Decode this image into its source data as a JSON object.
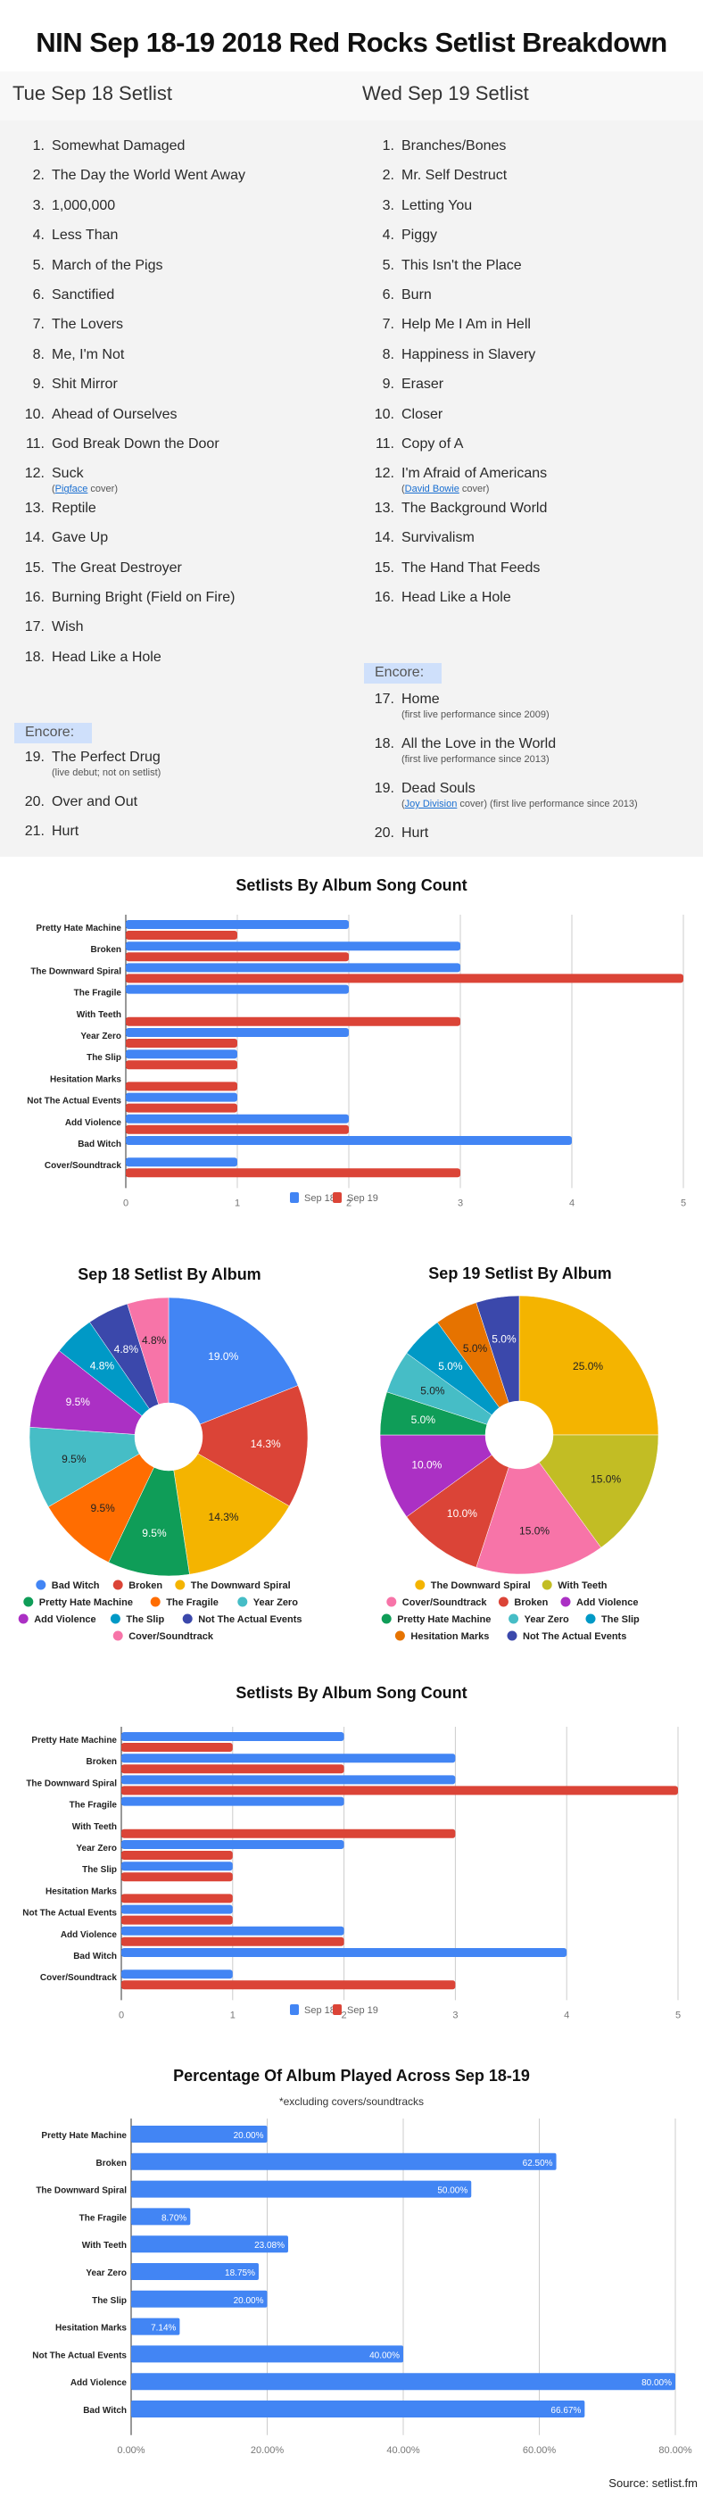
{
  "page": {
    "title": "NIN Sep 18-19 2018 Red Rocks Setlist Breakdown",
    "source": "Source: setlist.fm"
  },
  "setlists": {
    "sep18": {
      "heading": "Tue Sep 18 Setlist",
      "encore_label": "Encore:",
      "main": [
        {
          "n": "1.",
          "title": "Somewhat Damaged"
        },
        {
          "n": "2.",
          "title": "The Day the World Went Away"
        },
        {
          "n": "3.",
          "title": "1,000,000"
        },
        {
          "n": "4.",
          "title": "Less Than"
        },
        {
          "n": "5.",
          "title": "March of the Pigs"
        },
        {
          "n": "6.",
          "title": "Sanctified"
        },
        {
          "n": "7.",
          "title": "The Lovers"
        },
        {
          "n": "8.",
          "title": "Me, I'm Not"
        },
        {
          "n": "9.",
          "title": "Shit Mirror"
        },
        {
          "n": "10.",
          "title": "Ahead of Ourselves"
        },
        {
          "n": "11.",
          "title": "God Break Down the Door"
        },
        {
          "n": "12.",
          "title": "Suck",
          "note_pre": "(",
          "note_link": "Pigface",
          "note_post": " cover)"
        },
        {
          "n": "13.",
          "title": "Reptile"
        },
        {
          "n": "14.",
          "title": "Gave Up"
        },
        {
          "n": "15.",
          "title": "The Great Destroyer"
        },
        {
          "n": "16.",
          "title": "Burning Bright (Field on Fire)"
        },
        {
          "n": "17.",
          "title": "Wish"
        },
        {
          "n": "18.",
          "title": "Head Like a Hole"
        }
      ],
      "encore": [
        {
          "n": "19.",
          "title": "The Perfect Drug",
          "note": "(live debut; not on setlist)"
        },
        {
          "n": "20.",
          "title": "Over and Out"
        },
        {
          "n": "21.",
          "title": "Hurt"
        }
      ]
    },
    "sep19": {
      "heading": "Wed Sep 19 Setlist",
      "encore_label": "Encore:",
      "main": [
        {
          "n": "1.",
          "title": "Branches/Bones"
        },
        {
          "n": "2.",
          "title": "Mr. Self Destruct"
        },
        {
          "n": "3.",
          "title": "Letting You"
        },
        {
          "n": "4.",
          "title": "Piggy"
        },
        {
          "n": "5.",
          "title": "This Isn't the Place"
        },
        {
          "n": "6.",
          "title": "Burn"
        },
        {
          "n": "7.",
          "title": "Help Me I Am in Hell"
        },
        {
          "n": "8.",
          "title": "Happiness in Slavery"
        },
        {
          "n": "9.",
          "title": "Eraser"
        },
        {
          "n": "10.",
          "title": "Closer"
        },
        {
          "n": "11.",
          "title": "Copy of A"
        },
        {
          "n": "12.",
          "title": "I'm Afraid of Americans",
          "note_pre": "(",
          "note_link": "David Bowie",
          "note_post": " cover)"
        },
        {
          "n": "13.",
          "title": "The Background World"
        },
        {
          "n": "14.",
          "title": "Survivalism"
        },
        {
          "n": "15.",
          "title": "The Hand That Feeds"
        },
        {
          "n": "16.",
          "title": "Head Like a Hole"
        }
      ],
      "encore": [
        {
          "n": "17.",
          "title": "Home",
          "note": "(first live performance since 2009)"
        },
        {
          "n": "18.",
          "title": "All the Love in the World",
          "note": "(first live performance since 2013)"
        },
        {
          "n": "19.",
          "title": "Dead Souls",
          "note_pre": "(",
          "note_link": "Joy Division",
          "note_post": " cover) (first live performance since 2013)"
        },
        {
          "n": "20.",
          "title": "Hurt"
        }
      ]
    }
  },
  "colors": {
    "blue": "#4285f4",
    "red": "#db4437",
    "yellow": "#f4b400",
    "green": "#0f9d58",
    "orange": "#ff6d01",
    "teal": "#46bdc6",
    "purple": "#ab30c4",
    "cyan": "#0099c6",
    "indigo": "#3b48ab",
    "pink": "#f774a8",
    "olive": "#c2bd24",
    "dark_orange": "#e67300"
  },
  "chart_data": [
    {
      "type": "bar",
      "orientation": "horizontal",
      "title": "Setlists By Album Song Count",
      "categories": [
        "Pretty Hate Machine",
        "Broken",
        "The Downward Spiral",
        "The Fragile",
        "With Teeth",
        "Year Zero",
        "The Slip",
        "Hesitation Marks",
        "Not The Actual Events",
        "Add Violence",
        "Bad Witch",
        "Cover/Soundtrack"
      ],
      "series": [
        {
          "name": "Sep 18",
          "color": "#4285f4",
          "values": [
            2,
            3,
            3,
            2,
            0,
            2,
            1,
            0,
            1,
            2,
            4,
            1
          ]
        },
        {
          "name": "Sep 19",
          "color": "#db4437",
          "values": [
            1,
            2,
            5,
            0,
            3,
            1,
            1,
            1,
            1,
            2,
            0,
            3
          ]
        }
      ],
      "xticks": [
        "0",
        "1",
        "2",
        "3",
        "4",
        "5"
      ],
      "xlim": [
        0,
        5
      ],
      "grid": true,
      "legend_position": "bottom"
    },
    {
      "type": "pie",
      "donut": true,
      "title": "Sep 18 Setlist By Album",
      "labels": [
        "Bad Witch",
        "Broken",
        "The Downward Spiral",
        "Pretty Hate Machine",
        "The Fragile",
        "Year Zero",
        "Add Violence",
        "The Slip",
        "Not The Actual Events",
        "Cover/Soundtrack"
      ],
      "values": [
        19.0,
        14.3,
        14.3,
        9.5,
        9.5,
        9.5,
        9.5,
        4.8,
        4.8,
        4.8
      ],
      "value_labels": [
        "19.0%",
        "14.3%",
        "14.3%",
        "9.5%",
        "9.5%",
        "9.5%",
        "9.5%",
        "4.8%",
        "4.8%",
        "4.8%"
      ],
      "colors": [
        "#4285f4",
        "#db4437",
        "#f4b400",
        "#0f9d58",
        "#ff6d01",
        "#46bdc6",
        "#ab30c4",
        "#0099c6",
        "#3b48ab",
        "#f774a8"
      ],
      "label_colors": [
        "#ffffff",
        "#ffffff",
        "#222222",
        "#ffffff",
        "#222222",
        "#222222",
        "#ffffff",
        "#ffffff",
        "#ffffff",
        "#222222"
      ],
      "legend_position": "bottom"
    },
    {
      "type": "pie",
      "donut": true,
      "title": "Sep 19 Setlist By Album",
      "labels": [
        "The Downward Spiral",
        "With Teeth",
        "Cover/Soundtrack",
        "Broken",
        "Add Violence",
        "Pretty Hate Machine",
        "Year Zero",
        "The Slip",
        "Hesitation Marks",
        "Not The Actual Events"
      ],
      "values": [
        25.0,
        15.0,
        15.0,
        10.0,
        10.0,
        5.0,
        5.0,
        5.0,
        5.0,
        5.0
      ],
      "value_labels": [
        "25.0%",
        "15.0%",
        "15.0%",
        "10.0%",
        "10.0%",
        "5.0%",
        "5.0%",
        "5.0%",
        "5.0%",
        "5.0%"
      ],
      "colors": [
        "#f4b400",
        "#c2bd24",
        "#f774a8",
        "#db4437",
        "#ab30c4",
        "#0f9d58",
        "#46bdc6",
        "#0099c6",
        "#e67300",
        "#3b48ab"
      ],
      "label_colors": [
        "#222222",
        "#222222",
        "#222222",
        "#ffffff",
        "#ffffff",
        "#ffffff",
        "#222222",
        "#ffffff",
        "#222222",
        "#ffffff"
      ],
      "legend_position": "bottom"
    },
    {
      "type": "bar",
      "orientation": "horizontal",
      "title": "Setlists By Album Song Count",
      "categories": [
        "Pretty Hate Machine",
        "Broken",
        "The Downward Spiral",
        "The Fragile",
        "With Teeth",
        "Year Zero",
        "The Slip",
        "Hesitation Marks",
        "Not The Actual Events",
        "Add Violence",
        "Bad Witch",
        "Cover/Soundtrack"
      ],
      "series": [
        {
          "name": "Sep 18",
          "color": "#4285f4",
          "values": [
            2,
            3,
            3,
            2,
            0,
            2,
            1,
            0,
            1,
            2,
            4,
            1
          ]
        },
        {
          "name": "Sep 19",
          "color": "#db4437",
          "values": [
            1,
            2,
            5,
            0,
            3,
            1,
            1,
            1,
            1,
            2,
            0,
            3
          ]
        }
      ],
      "xticks": [
        "0",
        "1",
        "2",
        "3",
        "4",
        "5"
      ],
      "xlim": [
        0,
        5
      ],
      "grid": true,
      "legend_position": "bottom"
    },
    {
      "type": "bar",
      "orientation": "horizontal",
      "title": "Percentage Of Album Played Across Sep 18-19",
      "subtitle": "*excluding covers/soundtracks",
      "categories": [
        "Pretty Hate Machine",
        "Broken",
        "The Downward Spiral",
        "The Fragile",
        "With Teeth",
        "Year Zero",
        "The Slip",
        "Hesitation Marks",
        "Not The Actual Events",
        "Add Violence",
        "Bad Witch"
      ],
      "values": [
        20.0,
        62.5,
        50.0,
        8.7,
        23.08,
        18.75,
        20.0,
        7.14,
        40.0,
        80.0,
        66.67
      ],
      "value_labels": [
        "20.00%",
        "62.50%",
        "50.00%",
        "8.70%",
        "23.08%",
        "18.75%",
        "20.00%",
        "7.14%",
        "40.00%",
        "80.00%",
        "66.67%"
      ],
      "color": "#4285f4",
      "xticks": [
        "0.00%",
        "20.00%",
        "40.00%",
        "60.00%",
        "80.00%"
      ],
      "xlim": [
        0,
        80
      ],
      "grid": true
    }
  ]
}
